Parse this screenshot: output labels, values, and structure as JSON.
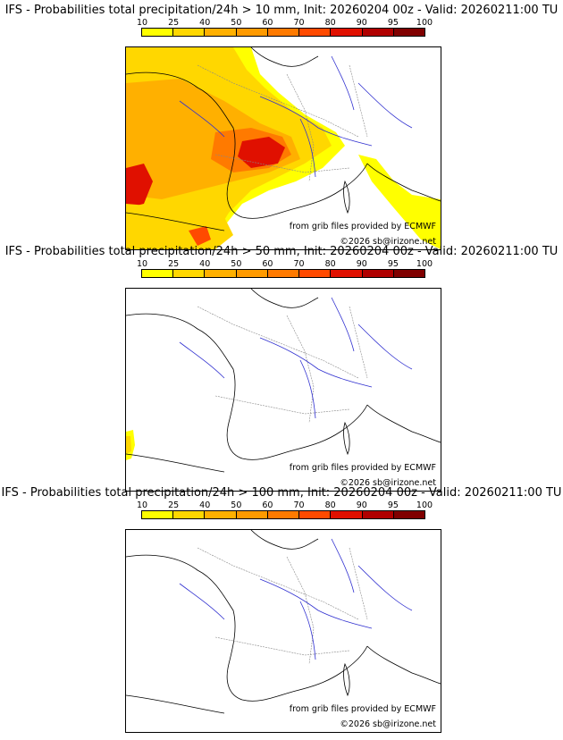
{
  "scale_ticks": [
    "10",
    "25",
    "40",
    "50",
    "60",
    "70",
    "80",
    "90",
    "95",
    "100"
  ],
  "scale_colors": [
    "#ffff00",
    "#ffd700",
    "#ffb000",
    "#ff9a00",
    "#ff7a00",
    "#ff4a00",
    "#e01000",
    "#b00000",
    "#800000"
  ],
  "panels": [
    {
      "title": "IFS - Probabilities total precipitation/24h > 10 mm, Init: 20260204 00z - Valid: 20260211:00 TU",
      "credit_source": "from grib files provided by ECMWF",
      "credit_copyright": "©2026 sb@irizone.net"
    },
    {
      "title": "IFS - Probabilities total precipitation/24h > 50 mm, Init: 20260204 00z - Valid: 20260211:00 TU",
      "credit_source": "from grib files provided by ECMWF",
      "credit_copyright": "©2026 sb@irizone.net"
    },
    {
      "title": "IFS - Probabilities total precipitation/24h > 100 mm, Init: 20260204 00z - Valid: 20260211:00 TU",
      "credit_source": "from grib files provided by ECMWF",
      "credit_copyright": "©2026 sb@irizone.net"
    }
  ]
}
